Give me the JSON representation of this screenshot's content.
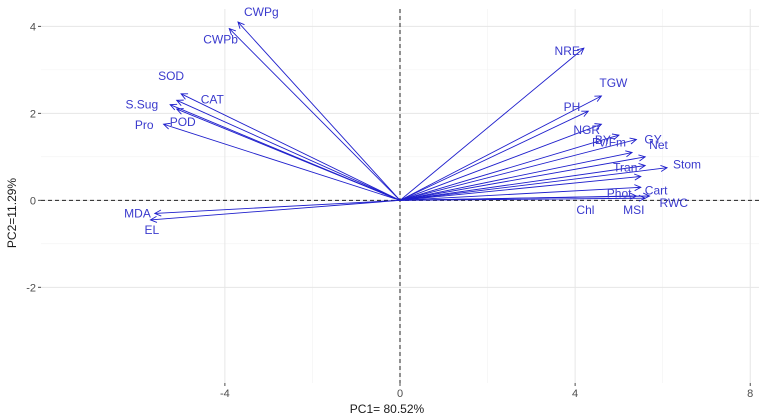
{
  "chart_data": {
    "type": "biplot",
    "title": "",
    "xlabel": "PC1= 80.52%",
    "ylabel": "PC2=11.29%",
    "xlim": [
      -8.2,
      8.2
    ],
    "ylim": [
      -4.2,
      4.4
    ],
    "x_ticks": [
      -4,
      0,
      4,
      8
    ],
    "y_ticks": [
      -2,
      0,
      2,
      4
    ],
    "grid": "major and minor, light gray",
    "reference_lines": "dashed lines at x=0 and y=0",
    "arrow_color": "#1f1fcc",
    "label_color": "#3a3acd",
    "vectors": [
      {
        "label": "CWPg",
        "x": -3.7,
        "y": 4.1
      },
      {
        "label": "CWPb",
        "x": -3.9,
        "y": 3.95
      },
      {
        "label": "SOD",
        "x": -5.0,
        "y": 2.45
      },
      {
        "label": "CAT",
        "x": -5.1,
        "y": 2.3
      },
      {
        "label": "S.Sug",
        "x": -5.25,
        "y": 2.2
      },
      {
        "label": "POD",
        "x": -5.1,
        "y": 2.1
      },
      {
        "label": "Pro",
        "x": -5.4,
        "y": 1.75
      },
      {
        "label": "MDA",
        "x": -5.6,
        "y": -0.3
      },
      {
        "label": "EL",
        "x": -5.7,
        "y": -0.45
      },
      {
        "label": "NRE",
        "x": 4.2,
        "y": 3.5
      },
      {
        "label": "TGW",
        "x": 4.6,
        "y": 2.4
      },
      {
        "label": "PH",
        "x": 4.3,
        "y": 2.05
      },
      {
        "label": "NGR",
        "x": 4.6,
        "y": 1.75
      },
      {
        "label": "BY",
        "x": 5.0,
        "y": 1.5
      },
      {
        "label": "GY",
        "x": 5.4,
        "y": 1.4
      },
      {
        "label": "Fv/Fm",
        "x": 5.3,
        "y": 1.1
      },
      {
        "label": "Net",
        "x": 5.6,
        "y": 1.0
      },
      {
        "label": "Tran",
        "x": 5.6,
        "y": 0.8
      },
      {
        "label": "Stom",
        "x": 6.1,
        "y": 0.75
      },
      {
        "label": "Cart",
        "x": 5.5,
        "y": 0.55
      },
      {
        "label": "Phot",
        "x": 5.5,
        "y": 0.3
      },
      {
        "label": "RWC",
        "x": 5.7,
        "y": 0.1
      },
      {
        "label": "MSI",
        "x": 5.6,
        "y": 0.05
      },
      {
        "label": "Chl",
        "x": 5.4,
        "y": 0.1
      }
    ]
  }
}
